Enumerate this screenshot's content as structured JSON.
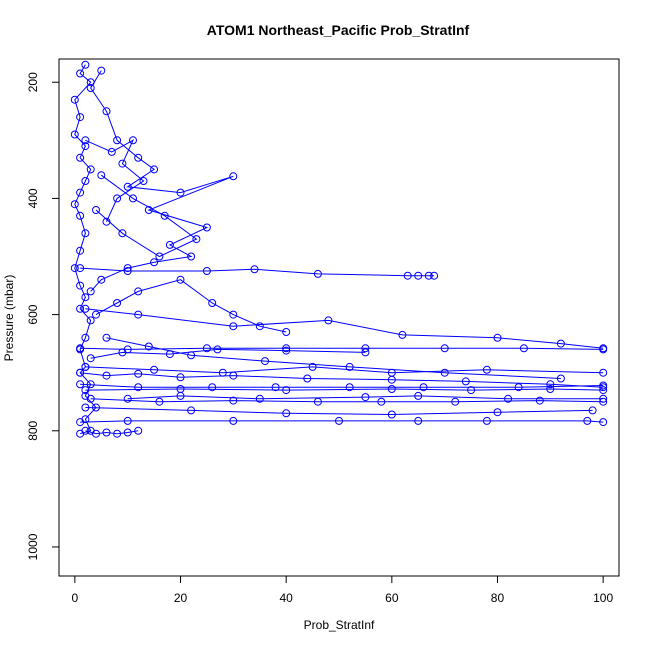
{
  "chart_data": {
    "type": "line",
    "title": "ATOM1 Northeast_Pacific Prob_StratInf",
    "xlabel": "Prob_StratInf",
    "ylabel": "Pressure (mbar)",
    "xlim": [
      -3,
      103
    ],
    "ylim": [
      1050,
      160
    ],
    "y_reversed": true,
    "xticks": [
      0,
      20,
      40,
      60,
      80,
      100
    ],
    "yticks": [
      200,
      400,
      600,
      800,
      1000
    ],
    "marker": "open-circle",
    "line_color": "#0000ff",
    "grid": false,
    "series": [
      {
        "points": [
          [
            2,
            170
          ],
          [
            1,
            185
          ],
          [
            3,
            200
          ],
          [
            0,
            230
          ],
          [
            1,
            260
          ],
          [
            0,
            290
          ],
          [
            2,
            310
          ],
          [
            1,
            330
          ],
          [
            3,
            350
          ],
          [
            2,
            370
          ],
          [
            1,
            390
          ],
          [
            0,
            410
          ],
          [
            1,
            430
          ],
          [
            2,
            460
          ],
          [
            1,
            490
          ],
          [
            0,
            520
          ],
          [
            1,
            550
          ],
          [
            2,
            570
          ],
          [
            1,
            590
          ],
          [
            3,
            610
          ],
          [
            2,
            640
          ],
          [
            1,
            660
          ],
          [
            2,
            690
          ],
          [
            1,
            700
          ],
          [
            3,
            720
          ],
          [
            2,
            740
          ],
          [
            4,
            760
          ],
          [
            2,
            780
          ],
          [
            3,
            800
          ],
          [
            1,
            805
          ]
        ]
      },
      {
        "points": [
          [
            5,
            180
          ],
          [
            3,
            210
          ],
          [
            6,
            250
          ],
          [
            8,
            300
          ],
          [
            12,
            330
          ],
          [
            15,
            350
          ],
          [
            10,
            380
          ],
          [
            20,
            390
          ],
          [
            30,
            362
          ],
          [
            14,
            420
          ],
          [
            25,
            450
          ],
          [
            18,
            480
          ],
          [
            22,
            500
          ],
          [
            15,
            510
          ],
          [
            10,
            520
          ],
          [
            5,
            540
          ],
          [
            3,
            560
          ]
        ]
      },
      {
        "points": [
          [
            1,
            520
          ],
          [
            10,
            525
          ],
          [
            25,
            525
          ],
          [
            34,
            522
          ],
          [
            46,
            530
          ],
          [
            63,
            533
          ],
          [
            65,
            533
          ],
          [
            67,
            533
          ],
          [
            68,
            533
          ]
        ]
      },
      {
        "points": [
          [
            2,
            590
          ],
          [
            12,
            600
          ],
          [
            30,
            620
          ],
          [
            48,
            610
          ],
          [
            62,
            635
          ],
          [
            80,
            640
          ],
          [
            92,
            650
          ],
          [
            100,
            658
          ]
        ]
      },
      {
        "points": [
          [
            1,
            658
          ],
          [
            10,
            660
          ],
          [
            25,
            658
          ],
          [
            40,
            658
          ],
          [
            55,
            658
          ],
          [
            70,
            658
          ],
          [
            85,
            658
          ],
          [
            100,
            660
          ]
        ]
      },
      {
        "points": [
          [
            2,
            690
          ],
          [
            15,
            695
          ],
          [
            28,
            700
          ],
          [
            45,
            690
          ],
          [
            60,
            700
          ],
          [
            78,
            695
          ],
          [
            100,
            700
          ]
        ]
      },
      {
        "points": [
          [
            1,
            720
          ],
          [
            12,
            725
          ],
          [
            26,
            725
          ],
          [
            38,
            725
          ],
          [
            52,
            725
          ],
          [
            66,
            725
          ],
          [
            84,
            725
          ],
          [
            100,
            722
          ]
        ]
      },
      {
        "points": [
          [
            2,
            730
          ],
          [
            20,
            728
          ],
          [
            40,
            730
          ],
          [
            60,
            728
          ],
          [
            75,
            730
          ],
          [
            90,
            728
          ],
          [
            100,
            730
          ]
        ]
      },
      {
        "points": [
          [
            3,
            745
          ],
          [
            16,
            750
          ],
          [
            30,
            748
          ],
          [
            46,
            750
          ],
          [
            58,
            750
          ],
          [
            72,
            750
          ],
          [
            88,
            748
          ],
          [
            100,
            750
          ]
        ]
      },
      {
        "points": [
          [
            2,
            760
          ],
          [
            22,
            765
          ],
          [
            40,
            770
          ],
          [
            60,
            772
          ],
          [
            80,
            768
          ],
          [
            98,
            765
          ]
        ]
      },
      {
        "points": [
          [
            1,
            785
          ],
          [
            10,
            783
          ],
          [
            30,
            783
          ],
          [
            50,
            783
          ],
          [
            65,
            783
          ],
          [
            78,
            783
          ],
          [
            97,
            783
          ],
          [
            100,
            785
          ]
        ]
      },
      {
        "points": [
          [
            2,
            800
          ],
          [
            4,
            805
          ],
          [
            6,
            803
          ],
          [
            8,
            805
          ],
          [
            10,
            803
          ],
          [
            12,
            800
          ]
        ]
      },
      {
        "points": [
          [
            4,
            600
          ],
          [
            8,
            580
          ],
          [
            12,
            560
          ],
          [
            20,
            540
          ],
          [
            26,
            580
          ],
          [
            30,
            600
          ],
          [
            35,
            620
          ],
          [
            40,
            630
          ]
        ]
      },
      {
        "points": [
          [
            6,
            640
          ],
          [
            14,
            655
          ],
          [
            22,
            670
          ],
          [
            36,
            680
          ],
          [
            52,
            690
          ],
          [
            70,
            700
          ],
          [
            92,
            710
          ]
        ]
      },
      {
        "points": [
          [
            1,
            700
          ],
          [
            6,
            705
          ],
          [
            12,
            702
          ],
          [
            20,
            708
          ],
          [
            30,
            705
          ],
          [
            44,
            710
          ],
          [
            60,
            712
          ],
          [
            74,
            715
          ],
          [
            90,
            720
          ],
          [
            100,
            725
          ]
        ]
      },
      {
        "points": [
          [
            5,
            360
          ],
          [
            11,
            400
          ],
          [
            17,
            430
          ],
          [
            23,
            470
          ],
          [
            16,
            500
          ],
          [
            9,
            460
          ],
          [
            4,
            420
          ]
        ]
      },
      {
        "points": [
          [
            2,
            300
          ],
          [
            7,
            320
          ],
          [
            11,
            300
          ],
          [
            9,
            340
          ],
          [
            13,
            370
          ],
          [
            8,
            400
          ],
          [
            6,
            440
          ]
        ]
      },
      {
        "points": [
          [
            10,
            745
          ],
          [
            20,
            740
          ],
          [
            35,
            745
          ],
          [
            55,
            742
          ],
          [
            65,
            740
          ],
          [
            82,
            745
          ],
          [
            100,
            745
          ]
        ]
      },
      {
        "points": [
          [
            3,
            675
          ],
          [
            9,
            665
          ],
          [
            18,
            668
          ],
          [
            27,
            660
          ],
          [
            40,
            662
          ],
          [
            55,
            665
          ]
        ]
      }
    ]
  }
}
